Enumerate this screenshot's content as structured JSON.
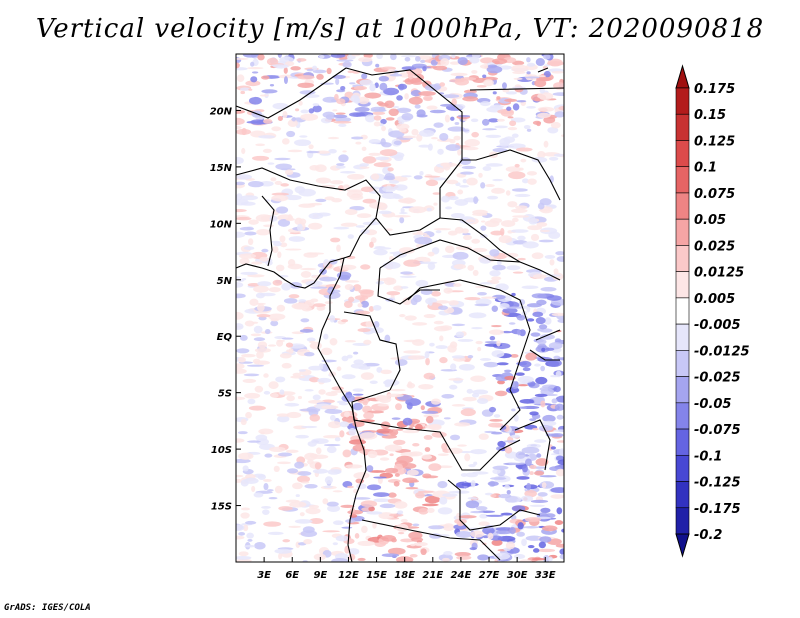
{
  "title": "Vertical velocity [m/s] at 1000hPa, VT: 2020090818",
  "footer": "GrADS: IGES/COLA",
  "map": {
    "lon_range": [
      0,
      35
    ],
    "lat_range": [
      -20,
      25
    ],
    "lon_ticks": [
      {
        "value": 3,
        "label": "3E"
      },
      {
        "value": 6,
        "label": "6E"
      },
      {
        "value": 9,
        "label": "9E"
      },
      {
        "value": 12,
        "label": "12E"
      },
      {
        "value": 15,
        "label": "15E"
      },
      {
        "value": 18,
        "label": "18E"
      },
      {
        "value": 21,
        "label": "21E"
      },
      {
        "value": 24,
        "label": "24E"
      },
      {
        "value": 27,
        "label": "27E"
      },
      {
        "value": 30,
        "label": "30E"
      },
      {
        "value": 33,
        "label": "33E"
      }
    ],
    "lat_ticks": [
      {
        "value": 20,
        "label": "20N"
      },
      {
        "value": 15,
        "label": "15N"
      },
      {
        "value": 10,
        "label": "10N"
      },
      {
        "value": 5,
        "label": "5N"
      },
      {
        "value": 0,
        "label": "EQ"
      },
      {
        "value": -5,
        "label": "5S"
      },
      {
        "value": -10,
        "label": "10S"
      },
      {
        "value": -15,
        "label": "15S"
      }
    ]
  },
  "colorbar": {
    "labels": [
      "0.175",
      "0.15",
      "0.125",
      "0.1",
      "0.075",
      "0.05",
      "0.025",
      "0.0125",
      "0.005",
      "-0.005",
      "-0.0125",
      "-0.025",
      "-0.05",
      "-0.075",
      "-0.1",
      "-0.125",
      "-0.175",
      "-0.2"
    ],
    "colors": [
      "#a01010",
      "#b31c1c",
      "#c83232",
      "#dc4b4b",
      "#e66464",
      "#ee8484",
      "#f5a5a5",
      "#fbc9c9",
      "#fde6e6",
      "#ffffff",
      "#e6e6fb",
      "#c8c8f7",
      "#a5a5f0",
      "#8484ea",
      "#6464e2",
      "#4848d4",
      "#3232c0",
      "#2020a8",
      "#10108c"
    ]
  }
}
